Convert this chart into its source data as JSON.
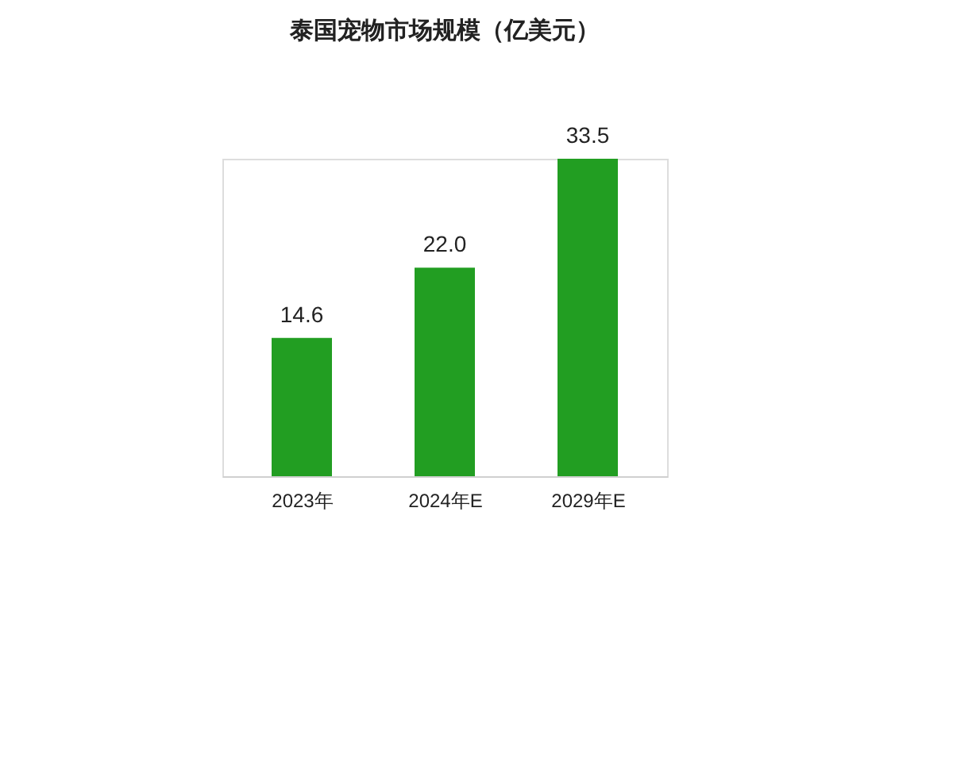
{
  "chart_data": {
    "type": "bar",
    "title": "泰国宠物市场规模（亿美元）",
    "categories": [
      "2023年",
      "2024年E",
      "2029年E"
    ],
    "values": [
      14.6,
      22.0,
      33.5
    ],
    "color": "#229e22",
    "value_labels": [
      "14.6",
      "22.0",
      "33.5"
    ]
  }
}
